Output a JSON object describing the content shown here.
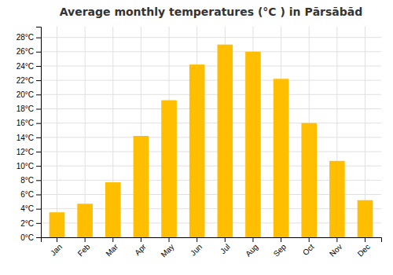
{
  "chart_data": {
    "type": "bar",
    "title": "Average monthly temperatures (°C ) in Pārsābād",
    "categories": [
      "Jan",
      "Feb",
      "Mar",
      "Apr",
      "May",
      "Jun",
      "Jul",
      "Aug",
      "Sep",
      "Oct",
      "Nov",
      "Dec"
    ],
    "values": [
      3.5,
      4.7,
      7.7,
      14.2,
      19.2,
      24.2,
      27.0,
      26.0,
      22.2,
      16.0,
      10.7,
      5.2
    ],
    "color": "#FFBE00",
    "ylim": [
      0,
      29.5
    ],
    "yticks": [
      {
        "value": 0,
        "label": "0°C"
      },
      {
        "value": 2,
        "label": "2°C"
      },
      {
        "value": 4,
        "label": "4°C"
      },
      {
        "value": 6,
        "label": "6°C"
      },
      {
        "value": 8,
        "label": "8°C"
      },
      {
        "value": 10,
        "label": "10°C"
      },
      {
        "value": 12,
        "label": "12°C"
      },
      {
        "value": 14,
        "label": "14°C"
      },
      {
        "value": 16,
        "label": "16°C"
      },
      {
        "value": 18,
        "label": "18°C"
      },
      {
        "value": 20,
        "label": "20°C"
      },
      {
        "value": 22,
        "label": "22°C"
      },
      {
        "value": 24,
        "label": "24°C"
      },
      {
        "value": 26,
        "label": "26°C"
      },
      {
        "value": 28,
        "label": "28°C"
      }
    ],
    "grid": true
  }
}
